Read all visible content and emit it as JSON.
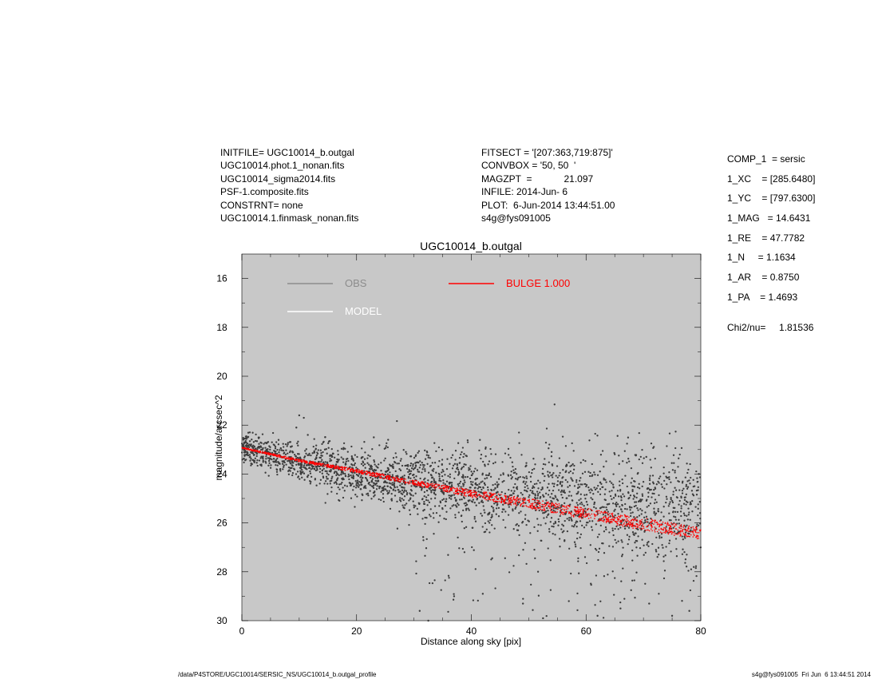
{
  "header_left": [
    "INITFILE= UGC10014_b.outgal",
    "UGC10014.phot.1_nonan.fits",
    "UGC10014_sigma2014.fits",
    "PSF-1.composite.fits",
    "CONSTRNT= none",
    "UGC10014.1.finmask_nonan.fits"
  ],
  "header_mid": [
    "FITSECT = '[207:363,719:875]'",
    "CONVBOX = '50, 50  '",
    "MAGZPT  =            21.097",
    "INFILE: 2014-Jun- 6",
    "PLOT:  6-Jun-2014 13:44:51.00",
    "s4g@fys091005"
  ],
  "header_right": [
    "COMP_1  = sersic",
    "1_XC    = [285.6480]",
    "1_YC    = [797.6300]",
    "1_MAG   = 14.6431",
    "1_RE    = 47.7782",
    "1_N     = 1.1634",
    "1_AR    = 0.8750",
    "1_PA    = 1.4693"
  ],
  "chi2": "Chi2/nu=     1.81536",
  "footer_left": "/data/P4STORE/UGC10014/SERSIC_NS/UGC10014_b.outgal_profile",
  "footer_right": "s4g@fys091005  Fri Jun  6 13:44:51 2014",
  "chart_data": {
    "type": "scatter",
    "title": "UGC10014_b.outgal",
    "xlabel": "Distance along sky [pix]",
    "ylabel": "magnitude/arcsec^2",
    "xlim": [
      0,
      80
    ],
    "ylim": [
      30,
      15
    ],
    "y_inverted": true,
    "xticks": [
      0,
      20,
      40,
      60,
      80
    ],
    "yticks": [
      16,
      18,
      20,
      22,
      24,
      26,
      28,
      30
    ],
    "grid": false,
    "background": "#c8c8c8",
    "legend": [
      {
        "label": "OBS",
        "color": "#8c8c8c"
      },
      {
        "label": "MODEL",
        "color": "#ffffff"
      },
      {
        "label": "BULGE  1.000",
        "color": "#ff0000"
      }
    ],
    "obs_color": "#3c3c3c",
    "model_color": "#ff0000",
    "obs_trend": {
      "x": [
        0,
        10,
        20,
        30,
        40,
        50,
        60,
        70,
        80
      ],
      "y": [
        22.9,
        23.5,
        23.9,
        24.3,
        24.6,
        24.9,
        25.1,
        25.3,
        25.4
      ]
    },
    "model_band": {
      "x": [
        0,
        10,
        20,
        30,
        40,
        50,
        60,
        70,
        80
      ],
      "y_bright": [
        22.9,
        23.4,
        23.8,
        24.25,
        24.65,
        25.0,
        25.4,
        25.8,
        26.2
      ],
      "y_faint": [
        22.95,
        23.5,
        23.95,
        24.45,
        24.95,
        25.4,
        25.85,
        26.3,
        26.7
      ]
    },
    "outliers": [
      {
        "x": 10.0,
        "y": 21.6
      },
      {
        "x": 10.8,
        "y": 21.7
      },
      {
        "x": 9.5,
        "y": 22.1
      },
      {
        "x": 11.5,
        "y": 22.4
      },
      {
        "x": 23.0,
        "y": 22.5
      },
      {
        "x": 25.5,
        "y": 22.6
      },
      {
        "x": 54.0,
        "y": 23.1
      },
      {
        "x": 70.5,
        "y": 23.3
      },
      {
        "x": 31.0,
        "y": 29.6
      },
      {
        "x": 32.5,
        "y": 30.0
      },
      {
        "x": 37.0,
        "y": 29.0
      },
      {
        "x": 42.0,
        "y": 28.9
      },
      {
        "x": 49.0,
        "y": 29.3
      },
      {
        "x": 52.5,
        "y": 29.9
      },
      {
        "x": 57.0,
        "y": 29.2
      },
      {
        "x": 62.0,
        "y": 29.8
      },
      {
        "x": 66.0,
        "y": 29.5
      },
      {
        "x": 71.0,
        "y": 29.3
      },
      {
        "x": 75.0,
        "y": 29.8
      },
      {
        "x": 78.0,
        "y": 29.6
      }
    ]
  }
}
